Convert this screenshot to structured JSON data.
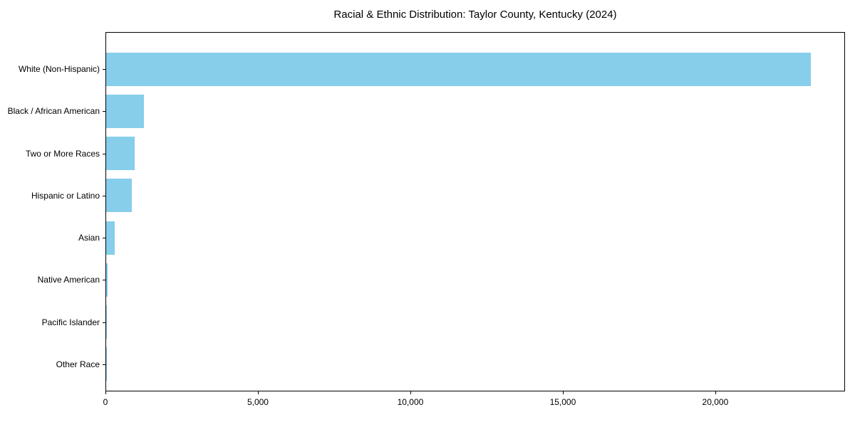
{
  "title": "Racial & Ethnic Distribution: Taylor County, Kentucky (2024)",
  "chart_data": {
    "type": "bar",
    "orientation": "horizontal",
    "title": "Racial & Ethnic Distribution: Taylor County, Kentucky (2024)",
    "categories": [
      "White (Non-Hispanic)",
      "Black / African American",
      "Two or More Races",
      "Hispanic or Latino",
      "Asian",
      "Native American",
      "Pacific Islander",
      "Other Race"
    ],
    "values": [
      23100,
      1230,
      940,
      840,
      290,
      40,
      20,
      10
    ],
    "bar_color": "#87CEEB",
    "xlabel": "",
    "ylabel": "",
    "xlim": [
      0,
      24255
    ],
    "x_ticks": [
      0,
      5000,
      10000,
      15000,
      20000
    ],
    "x_tick_labels": [
      "0",
      "5,000",
      "10,000",
      "15,000",
      "20,000"
    ],
    "grid": false,
    "legend": null,
    "background_color": "#ffffff",
    "spine_color": "#000000"
  }
}
